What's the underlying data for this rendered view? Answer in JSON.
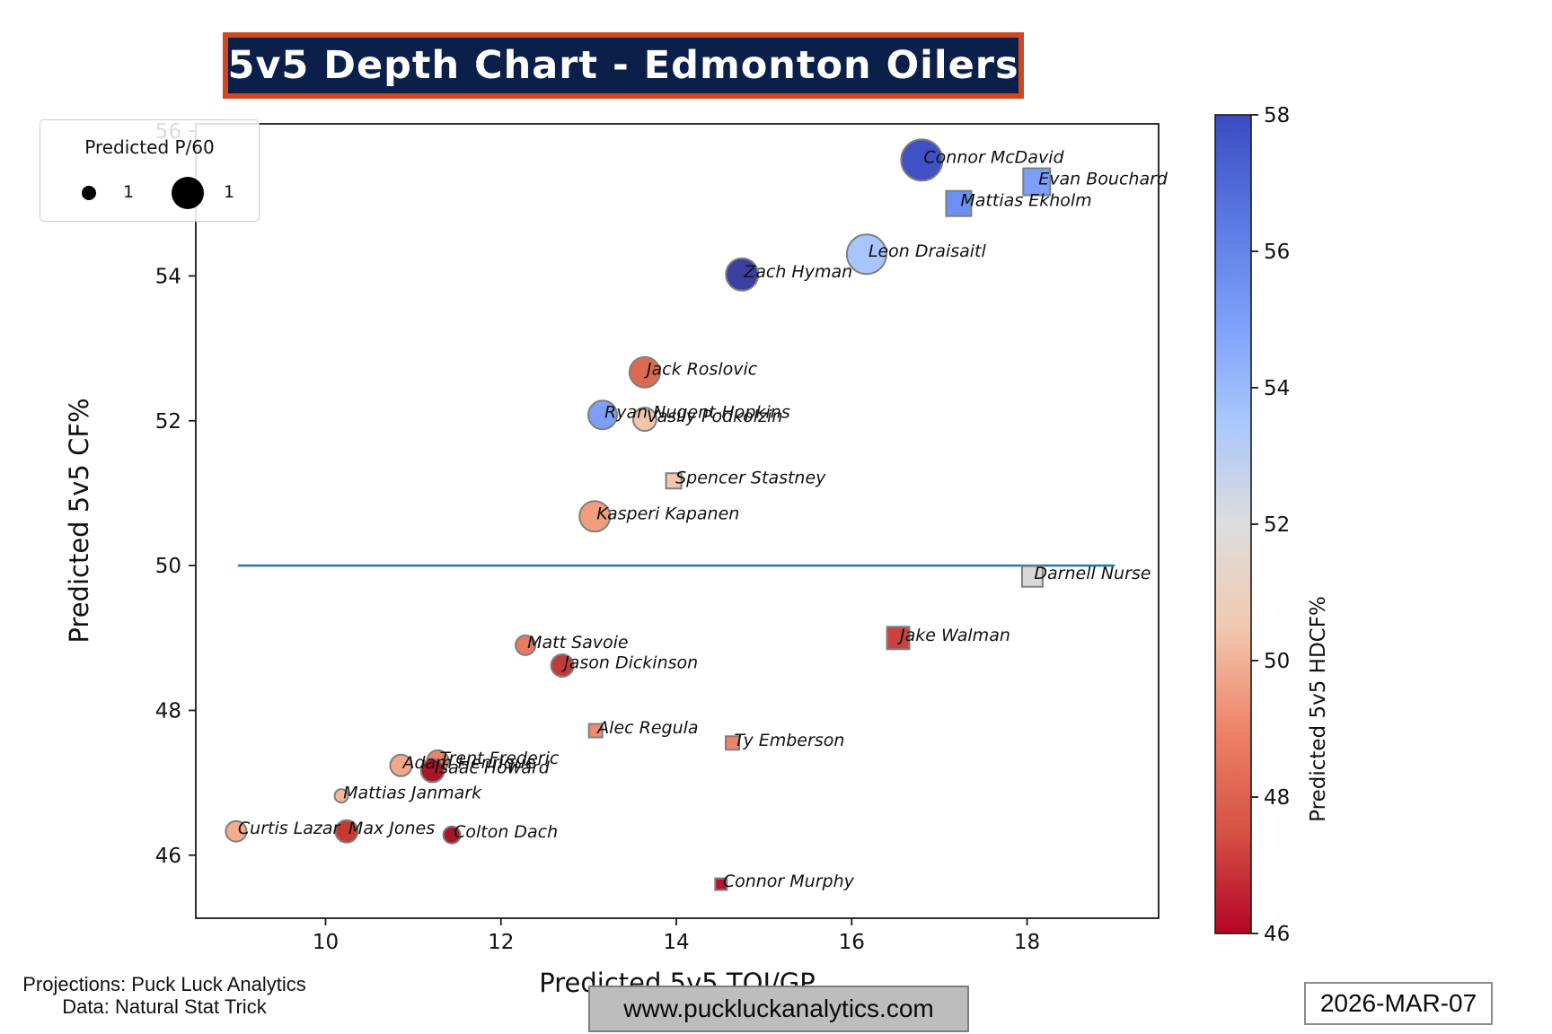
{
  "title": "5v5 Depth Chart - Edmonton Oilers",
  "legend": {
    "title": "Predicted P/60",
    "small_label": "1",
    "large_label": "1"
  },
  "footer": {
    "line1": "Projections: Puck Luck Analytics",
    "line2": "Data: Natural Stat Trick",
    "website": "www.puckluckanalytics.com",
    "date": "2026-MAR-07"
  },
  "colors": {
    "title_bg": "#0B1F4B",
    "title_border": "#CF4720",
    "reference_line": "#1F77B4",
    "marker_edge": "#7F7F7F"
  },
  "chart_data": {
    "type": "scatter",
    "title": "5v5 Depth Chart - Edmonton Oilers",
    "xlabel": "Predicted 5v5 TOI/GP",
    "ylabel": "Predicted 5v5 CF%",
    "colorbar_label": "Predicted 5v5 HDCF%",
    "size_legend_label": "Predicted P/60",
    "x_ticks": [
      10,
      12,
      14,
      16,
      18
    ],
    "y_ticks": [
      46,
      48,
      50,
      52,
      54,
      56
    ],
    "colorbar_ticks": [
      58,
      56,
      54,
      52,
      50,
      48,
      46
    ],
    "xlim": [
      8.52,
      19.5
    ],
    "ylim": [
      45.13,
      56.1
    ],
    "colorbar_lim": [
      46,
      58
    ],
    "grid": false,
    "legend_position": "upper left",
    "reference_line": {
      "y": 50,
      "x_start": 9,
      "x_end": 19
    },
    "marker_shapes": {
      "circle": "forward",
      "square": "defenseman"
    },
    "players": [
      {
        "name": "Connor McDavid",
        "marker": "circle",
        "toi": 16.8,
        "cf": 55.6,
        "size": 23,
        "color": "#3F51C5"
      },
      {
        "name": "Evan Bouchard",
        "marker": "square",
        "toi": 18.11,
        "cf": 55.3,
        "size": 15,
        "color": "#7C9FF9"
      },
      {
        "name": "Mattias Ekholm",
        "marker": "square",
        "toi": 17.22,
        "cf": 55.0,
        "size": 14,
        "color": "#6D90F3"
      },
      {
        "name": "Leon Draisaitl",
        "marker": "circle",
        "toi": 16.17,
        "cf": 54.3,
        "size": 22,
        "color": "#A9C5FD"
      },
      {
        "name": "Zach Hyman",
        "marker": "circle",
        "toi": 14.75,
        "cf": 54.02,
        "size": 18,
        "color": "#3B3F9E"
      },
      {
        "name": "Jack Roslovic",
        "marker": "circle",
        "toi": 13.64,
        "cf": 52.67,
        "size": 17,
        "color": "#DE6952"
      },
      {
        "name": "Ryan Nugent-Hopkins",
        "marker": "circle",
        "toi": 13.16,
        "cf": 52.08,
        "size": 16,
        "color": "#7C9FF9"
      },
      {
        "name": "Vasily Podkolzin",
        "marker": "circle",
        "toi": 13.64,
        "cf": 52.02,
        "size": 13,
        "color": "#F1C6AC"
      },
      {
        "name": "Spencer Stastney",
        "marker": "square",
        "toi": 13.97,
        "cf": 51.17,
        "size": 8.5,
        "color": "#F3C7AE"
      },
      {
        "name": "Kasperi Kapanen",
        "marker": "circle",
        "toi": 13.07,
        "cf": 50.68,
        "size": 17,
        "color": "#F09E7D"
      },
      {
        "name": "Darnell Nurse",
        "marker": "square",
        "toi": 18.06,
        "cf": 49.85,
        "size": 11.5,
        "color": "#D9D8D7"
      },
      {
        "name": "Jake Walman",
        "marker": "square",
        "toi": 16.53,
        "cf": 49.0,
        "size": 12.5,
        "color": "#CB4242"
      },
      {
        "name": "Matt Savoie",
        "marker": "circle",
        "toi": 12.28,
        "cf": 48.9,
        "size": 11,
        "color": "#E87A5F"
      },
      {
        "name": "Jason Dickinson",
        "marker": "circle",
        "toi": 12.7,
        "cf": 48.62,
        "size": 12.5,
        "color": "#C23B39"
      },
      {
        "name": "Alec Regula",
        "marker": "square",
        "toi": 13.08,
        "cf": 47.72,
        "size": 7.5,
        "color": "#EF8A6D"
      },
      {
        "name": "Ty Emberson",
        "marker": "square",
        "toi": 14.64,
        "cf": 47.55,
        "size": 7.5,
        "color": "#EE8366"
      },
      {
        "name": "Trent Frederic",
        "marker": "circle",
        "toi": 11.28,
        "cf": 47.3,
        "size": 12,
        "color": "#E88568"
      },
      {
        "name": "Adam Henrique",
        "marker": "circle",
        "toi": 10.86,
        "cf": 47.24,
        "size": 12,
        "color": "#F3A988"
      },
      {
        "name": "Isaac Howard",
        "marker": "circle",
        "toi": 11.22,
        "cf": 47.17,
        "size": 13,
        "color": "#A81629"
      },
      {
        "name": "Mattias Janmark",
        "marker": "circle",
        "toi": 10.18,
        "cf": 46.82,
        "size": 7.5,
        "color": "#F4BA9C"
      },
      {
        "name": "Curtis Lazar",
        "marker": "circle",
        "toi": 8.98,
        "cf": 46.33,
        "size": 11.5,
        "color": "#F4AE8D"
      },
      {
        "name": "Max Jones",
        "marker": "circle",
        "toi": 10.24,
        "cf": 46.33,
        "size": 12.5,
        "color": "#C43A30"
      },
      {
        "name": "Colton Dach",
        "marker": "circle",
        "toi": 11.44,
        "cf": 46.28,
        "size": 9.5,
        "color": "#A91528"
      },
      {
        "name": "Connor Murphy",
        "marker": "square",
        "toi": 14.51,
        "cf": 45.6,
        "size": 6.5,
        "color": "#B71230"
      }
    ]
  }
}
